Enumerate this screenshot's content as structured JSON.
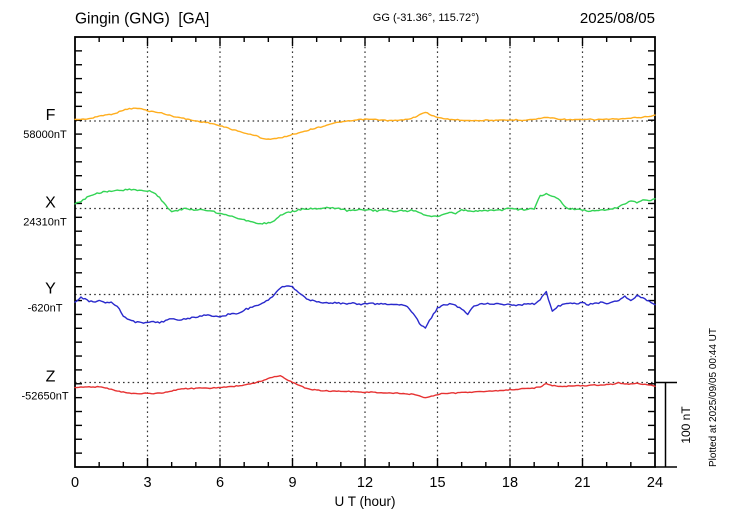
{
  "header": {
    "station": "Gingin (GNG)  [GA]",
    "coordinates": "GG (-31.36°, 115.72°)",
    "date": "2025/08/05"
  },
  "footer": {
    "xlabel": "U T (hour)"
  },
  "sidebar_right": {
    "scale_label": "100 nT",
    "plotted_at": "Plotted at 2025/09/05 00:44 UT"
  },
  "chart_data": {
    "type": "line",
    "title": "Gingin (GNG) [GA] magnetogram 2025/08/05",
    "xlabel": "U T (hour)",
    "x_range": [
      0,
      24
    ],
    "x_ticks": [
      0,
      3,
      6,
      9,
      12,
      15,
      18,
      21,
      24
    ],
    "x_step_hours": 0.25,
    "grid": "dotted vertical lines every 3 hours; dotted horizontal baseline per trace",
    "scale_bar_nT": 100,
    "scale_bar_label": "100 nT",
    "plotted_at": "Plotted at 2025/09/05 00:44 UT",
    "series": [
      {
        "name": "F",
        "baseline_label": "58000nT",
        "color": "#FFAE1E",
        "values_nT": [
          2,
          2,
          2.5,
          3.5,
          6,
          7,
          8,
          10,
          13,
          14.5,
          15,
          14.5,
          12,
          11,
          10,
          8,
          6,
          4.5,
          3,
          1.5,
          0,
          -1,
          -2,
          -3.5,
          -6,
          -7.5,
          -10,
          -12,
          -14,
          -16,
          -17.5,
          -20.5,
          -21.5,
          -21,
          -20,
          -18,
          -16,
          -14,
          -12,
          -10,
          -8,
          -6.5,
          -4,
          -2.5,
          -1,
          -0.5,
          0.5,
          1.5,
          2,
          2,
          1.5,
          1,
          0.5,
          0.5,
          1,
          2,
          4,
          7,
          10.5,
          7,
          4,
          3,
          2,
          1.5,
          1,
          1,
          0.5,
          0.5,
          1,
          1,
          0.5,
          1,
          1,
          1.5,
          1,
          1.5,
          2,
          3,
          4.5,
          3.5,
          2.5,
          2,
          1.5,
          1.5,
          1.5,
          2,
          1.5,
          2,
          2,
          2.5,
          2,
          2.5,
          3.5,
          4,
          4.5,
          5.5,
          7
        ]
      },
      {
        "name": "X",
        "baseline_label": "24310nT",
        "color": "#33D455",
        "values_nT": [
          5.5,
          8,
          13,
          16,
          18.5,
          20,
          21,
          21.5,
          22,
          23,
          22,
          21.5,
          21,
          19,
          12.5,
          4,
          -4,
          -2,
          -0.5,
          -1,
          -1.5,
          -1,
          -2,
          -4,
          -6.5,
          -8,
          -9.5,
          -12,
          -13.5,
          -15.5,
          -17.5,
          -18,
          -17,
          -14.5,
          -8.5,
          -5.5,
          -3.5,
          -1.5,
          -0.5,
          0,
          -0.5,
          0.5,
          1.5,
          0.5,
          -0.5,
          -2.5,
          -2,
          -1.5,
          -2.5,
          -2,
          -3,
          -2,
          -2.5,
          -3.5,
          -2.5,
          -3,
          -2,
          -4.5,
          -7.5,
          -9.5,
          -9.5,
          -6,
          -4.5,
          -5.5,
          -1,
          -3,
          -3.5,
          -2.5,
          -3,
          -2,
          -2.5,
          -1.5,
          0.5,
          -1,
          -1.5,
          -0.5,
          -1,
          15,
          17.5,
          14,
          12,
          2,
          -0.5,
          -1,
          -1.5,
          -3,
          -2,
          -2.5,
          -1.5,
          -0.5,
          2,
          6,
          8.5,
          7.5,
          10.5,
          9,
          11.5
        ]
      },
      {
        "name": "Y",
        "baseline_label": "-620nT",
        "color": "#2929CC",
        "values_nT": [
          -9,
          -3,
          -7,
          -9,
          -7,
          -10.5,
          -9,
          -13.5,
          -25,
          -30,
          -32.5,
          -33.5,
          -33,
          -32.5,
          -33.5,
          -31,
          -28,
          -30,
          -29.5,
          -28,
          -27,
          -25.5,
          -24,
          -25.5,
          -26,
          -24.5,
          -22,
          -22.5,
          -18,
          -16,
          -13,
          -10,
          -6.5,
          0,
          8,
          10.5,
          9,
          2,
          -3.5,
          -7,
          -8.5,
          -10,
          -10.5,
          -10,
          -10.5,
          -11,
          -10.5,
          -11.5,
          -11,
          -10.5,
          -11.5,
          -11,
          -11.5,
          -12,
          -12.5,
          -14,
          -22,
          -34,
          -40,
          -27,
          -16,
          -12,
          -11.5,
          -13,
          -17,
          -23,
          -14,
          -11,
          -10.5,
          -12,
          -11,
          -12.5,
          -11.5,
          -13,
          -12,
          -10.5,
          -11.5,
          -6,
          3,
          -20,
          -14,
          -10.5,
          -9.5,
          -11,
          -10,
          -12,
          -10.5,
          -9.5,
          -10.5,
          -9,
          -7,
          -2,
          -8,
          -1.5,
          -4.5,
          -7.5,
          -12
        ]
      },
      {
        "name": "Z",
        "baseline_label": "-52650nT",
        "color": "#E63232",
        "values_nT": [
          -6,
          -5.5,
          -5,
          -5.5,
          -5,
          -6.5,
          -8,
          -10,
          -11.5,
          -12.5,
          -13,
          -13,
          -12.5,
          -13,
          -12.5,
          -11.5,
          -10,
          -8.5,
          -7.5,
          -7,
          -7,
          -6.5,
          -7,
          -6.5,
          -6,
          -5.5,
          -5,
          -4,
          -3,
          -1.5,
          0,
          2,
          4.5,
          6.5,
          8,
          4,
          0,
          -3.5,
          -6,
          -8,
          -9,
          -9.5,
          -10,
          -10,
          -10.5,
          -10.5,
          -11,
          -11,
          -11.5,
          -11.5,
          -12,
          -12,
          -12.5,
          -12.5,
          -13,
          -13.5,
          -14,
          -15.5,
          -18,
          -16.5,
          -14,
          -13,
          -12.5,
          -12.5,
          -12,
          -11.5,
          -11.5,
          -11,
          -10.5,
          -10,
          -9.5,
          -9,
          -8.5,
          -8,
          -7.5,
          -7,
          -6.5,
          -5,
          -1.5,
          -3.5,
          -4.5,
          -4.5,
          -4,
          -4,
          -3.5,
          -3.5,
          -3,
          -3,
          -2.5,
          -2,
          -0.5,
          -1.5,
          -2,
          -1,
          -2,
          -2.5,
          -4.5
        ]
      }
    ]
  }
}
